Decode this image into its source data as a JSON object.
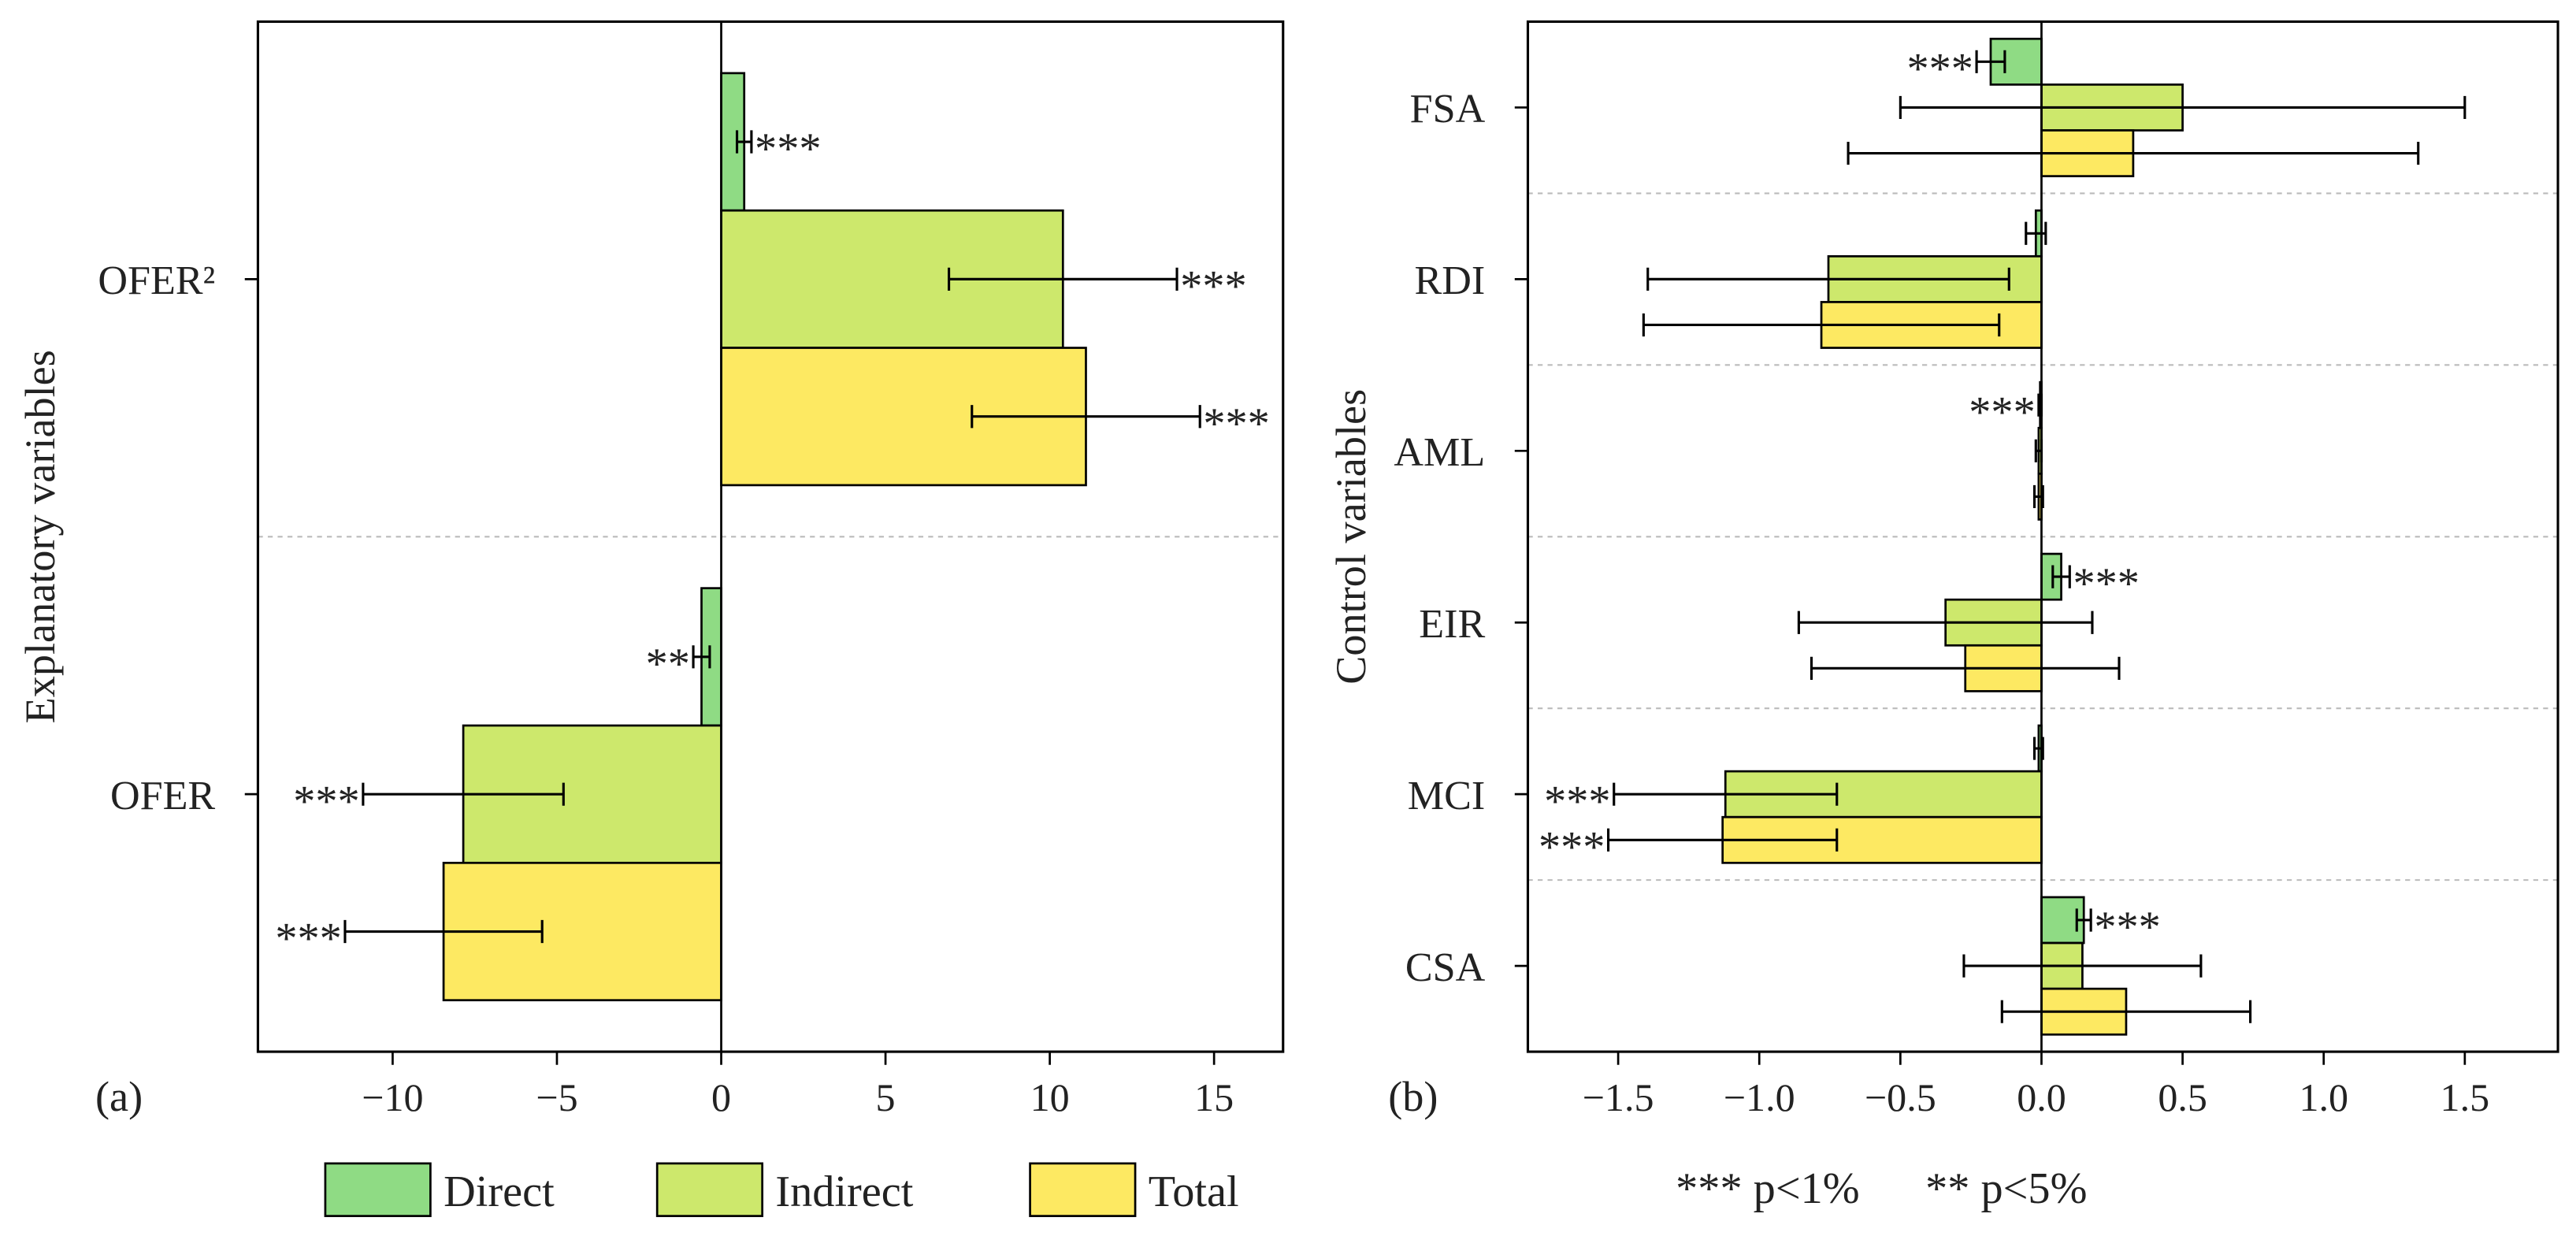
{
  "chart_data": [
    {
      "type": "bar",
      "orientation": "horizontal",
      "panel_label": "(a)",
      "ylabel": "Explanatory variables",
      "categories": [
        "OFER²",
        "OFER"
      ],
      "series": [
        {
          "name": "Direct",
          "color": "#8fdb84",
          "values": [
            0.7,
            -0.6
          ],
          "errors": [
            0.22,
            0.25
          ],
          "significance": [
            "***",
            "**"
          ]
        },
        {
          "name": "Indirect",
          "color": "#cde86c",
          "values": [
            10.4,
            -7.85
          ],
          "errors": [
            3.47,
            3.05
          ],
          "significance": [
            "***",
            "***"
          ]
        },
        {
          "name": "Total",
          "color": "#fde962",
          "values": [
            11.1,
            -8.45
          ],
          "errors": [
            3.47,
            3.0
          ],
          "significance": [
            "***",
            "***"
          ]
        }
      ],
      "xlim": [
        -14.1,
        17.1
      ],
      "xticks": [
        {
          "value": -10,
          "label": "−10"
        },
        {
          "value": -5,
          "label": "−5"
        },
        0,
        5,
        10,
        15
      ]
    },
    {
      "type": "bar",
      "orientation": "horizontal",
      "panel_label": "(b)",
      "ylabel": "Control variables",
      "categories": [
        "FSA",
        "RDI",
        "AML",
        "EIR",
        "MCI",
        "CSA"
      ],
      "series": [
        {
          "color": "#8fdb84",
          "values": [
            -0.18,
            -0.02,
            -0.005,
            0.07,
            -0.01,
            0.15
          ],
          "errors": [
            0.05,
            0.035,
            0.005,
            0.03,
            0.015,
            0.025
          ],
          "significance": [
            "***",
            null,
            "***",
            "***",
            null,
            "***"
          ]
        },
        {
          "color": "#cde86c",
          "values": [
            0.5,
            -0.755,
            -0.01,
            -0.34,
            -1.12,
            0.145
          ],
          "errors": [
            1.0,
            0.64,
            0.01,
            0.52,
            0.395,
            0.42
          ],
          "significance": [
            null,
            null,
            null,
            null,
            "***",
            null
          ]
        },
        {
          "color": "#fde962",
          "values": [
            0.325,
            -0.78,
            -0.01,
            -0.27,
            -1.13,
            0.3
          ],
          "errors": [
            1.01,
            0.63,
            0.015,
            0.545,
            0.405,
            0.44
          ],
          "significance": [
            null,
            null,
            null,
            null,
            "***",
            null
          ]
        }
      ],
      "xlim": [
        -1.82,
        1.83
      ],
      "xticks": [
        {
          "value": -1.5,
          "label": "−1.5"
        },
        {
          "value": -1.0,
          "label": "−1.0"
        },
        {
          "value": -0.5,
          "label": "−0.5"
        },
        {
          "value": 0,
          "label": "0.0"
        },
        0.5,
        {
          "value": 1.0,
          "label": "1.0"
        },
        1.5
      ],
      "annotations": [
        "*** p<1%",
        "** p<5%"
      ]
    }
  ]
}
